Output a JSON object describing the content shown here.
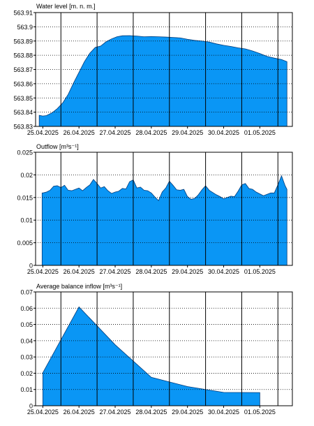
{
  "chart_data": [
    {
      "type": "area",
      "title": "Water level [m. n. m.]",
      "ylim": [
        563.83,
        563.91
      ],
      "y_ticks": [
        "563.91",
        "563.9",
        "563.89",
        "563.88",
        "563.87",
        "563.86",
        "563.85",
        "563.84",
        "563.83"
      ],
      "x_ticks": [
        "25.04.2025",
        "26.04.2025",
        "27.04.2025",
        "28.04.2025",
        "29.04.2025",
        "30.04.2025",
        "01.05.2025"
      ],
      "grid": true,
      "fill_color": "#0a96f5",
      "x": [
        24.9,
        25.0,
        25.1,
        25.25,
        25.4,
        25.55,
        25.7,
        25.85,
        26.0,
        26.15,
        26.3,
        26.45,
        26.6,
        26.75,
        26.9,
        27.05,
        27.2,
        27.4,
        27.6,
        27.8,
        28.0,
        28.2,
        28.4,
        28.6,
        28.8,
        29.0,
        29.2,
        29.4,
        29.6,
        29.8,
        30.0,
        30.2,
        30.4,
        30.6,
        30.8,
        31.0,
        31.2,
        31.4,
        31.6,
        31.75
      ],
      "values": [
        563.8378,
        563.8373,
        563.8376,
        563.8395,
        563.8425,
        563.8465,
        563.8525,
        563.8605,
        563.868,
        563.8755,
        563.8815,
        563.8855,
        563.8865,
        563.8895,
        563.8915,
        563.893,
        563.8937,
        563.8938,
        563.8935,
        563.893,
        563.8932,
        563.893,
        563.8928,
        563.8925,
        563.8922,
        563.8912,
        563.8905,
        563.89,
        563.8893,
        563.888,
        563.887,
        563.8862,
        563.8852,
        563.8845,
        563.883,
        563.8812,
        563.8792,
        563.878,
        563.877,
        563.8755
      ]
    },
    {
      "type": "area",
      "title": "Outflow [m³s⁻¹]",
      "ylim": [
        0,
        0.025
      ],
      "y_ticks": [
        "0.025",
        "0.02",
        "0.015",
        "0.01",
        "0.005",
        "0"
      ],
      "x_ticks": [
        "25.04.2025",
        "26.04.2025",
        "27.04.2025",
        "28.04.2025",
        "29.04.2025",
        "30.04.2025",
        "01.05.2025"
      ],
      "grid": true,
      "fill_color": "#0a96f5",
      "x": [
        24.98,
        25.0,
        25.1,
        25.2,
        25.3,
        25.4,
        25.5,
        25.6,
        25.7,
        25.8,
        25.9,
        26.0,
        26.1,
        26.2,
        26.3,
        26.4,
        26.5,
        26.6,
        26.7,
        26.8,
        26.9,
        27.0,
        27.1,
        27.2,
        27.3,
        27.4,
        27.5,
        27.6,
        27.7,
        27.8,
        27.9,
        28.0,
        28.1,
        28.2,
        28.3,
        28.4,
        28.5,
        28.6,
        28.7,
        28.8,
        28.9,
        29.0,
        29.1,
        29.2,
        29.3,
        29.4,
        29.5,
        29.6,
        29.7,
        29.8,
        29.9,
        30.0,
        30.1,
        30.2,
        30.3,
        30.4,
        30.5,
        30.6,
        30.7,
        30.8,
        30.9,
        31.0,
        31.1,
        31.2,
        31.3,
        31.4,
        31.5,
        31.6,
        31.7,
        31.75
      ],
      "values": [
        0.016,
        0.016,
        0.0162,
        0.0166,
        0.0175,
        0.0176,
        0.0172,
        0.0177,
        0.0166,
        0.0165,
        0.0168,
        0.0171,
        0.0165,
        0.0172,
        0.0178,
        0.019,
        0.0181,
        0.0171,
        0.0174,
        0.0165,
        0.0159,
        0.0162,
        0.0164,
        0.017,
        0.0169,
        0.0185,
        0.0189,
        0.0171,
        0.0173,
        0.0166,
        0.0165,
        0.016,
        0.0151,
        0.0143,
        0.0162,
        0.0171,
        0.0186,
        0.0177,
        0.0167,
        0.0166,
        0.0168,
        0.0152,
        0.0146,
        0.0148,
        0.0156,
        0.0167,
        0.0176,
        0.0166,
        0.0161,
        0.0156,
        0.0152,
        0.0147,
        0.015,
        0.0153,
        0.0152,
        0.0164,
        0.0178,
        0.0181,
        0.017,
        0.0168,
        0.0162,
        0.0158,
        0.0154,
        0.0157,
        0.016,
        0.016,
        0.0178,
        0.0198,
        0.0176,
        0.0168
      ]
    },
    {
      "type": "area",
      "title": "Average balance inflow  [m³s⁻¹]",
      "ylim": [
        0,
        0.07
      ],
      "y_ticks": [
        "0.07",
        "0.06",
        "0.05",
        "0.04",
        "0.03",
        "0.02",
        "0.01",
        "0"
      ],
      "x_ticks": [
        "25.04.2025",
        "26.04.2025",
        "27.04.2025",
        "28.04.2025",
        "29.04.2025",
        "30.04.2025",
        "01.05.2025"
      ],
      "grid": true,
      "fill_color": "#0a96f5",
      "x": [
        25.0,
        26.0,
        27.0,
        28.0,
        29.0,
        30.0,
        31.0
      ],
      "values": [
        0.0203,
        0.0608,
        0.0375,
        0.0175,
        0.0118,
        0.0082,
        0.0081
      ]
    }
  ]
}
